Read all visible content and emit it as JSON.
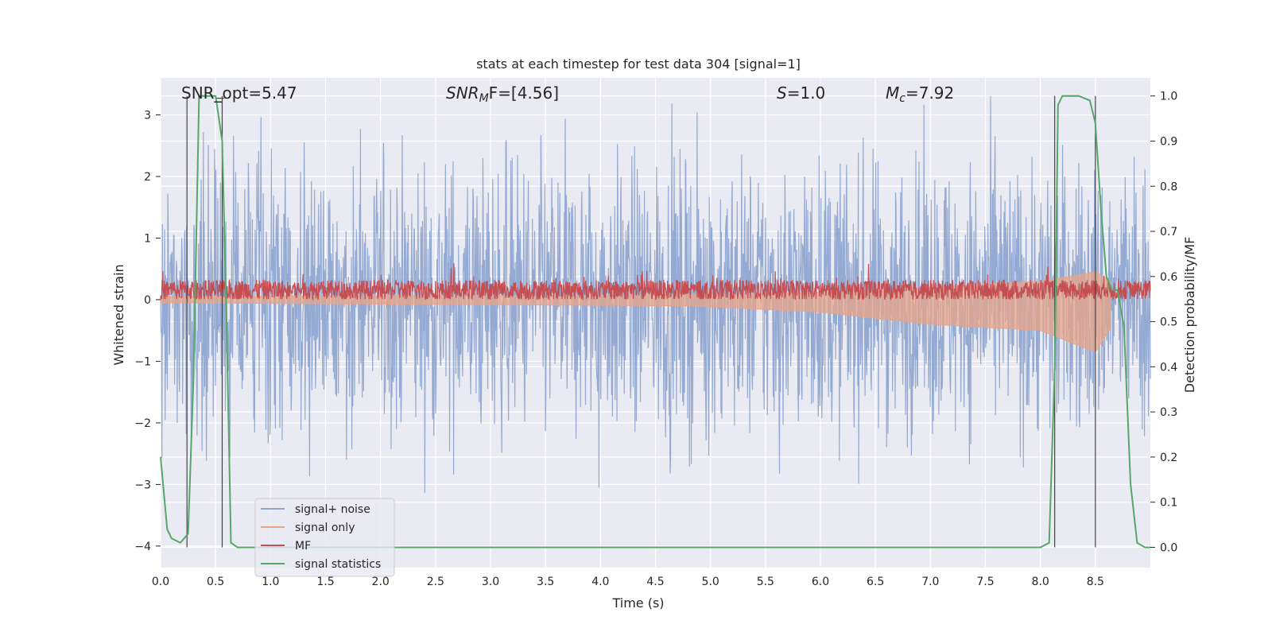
{
  "chart_data": {
    "type": "line",
    "title": "stats at each timestep for test data 304 [signal=1]",
    "xlabel": "Time (s)",
    "ylabel_left": "Whitened strain",
    "ylabel_right": "Detection probability/MF",
    "xlim": [
      0.0,
      9.0
    ],
    "ylim_left": [
      -4.35,
      3.6
    ],
    "ylim_right": [
      -0.045,
      1.04
    ],
    "x_ticks": [
      "0.0",
      "0.5",
      "1.0",
      "1.5",
      "2.0",
      "2.5",
      "3.0",
      "3.5",
      "4.0",
      "4.5",
      "5.0",
      "5.5",
      "6.0",
      "6.5",
      "7.0",
      "7.5",
      "8.0",
      "8.5"
    ],
    "y_left_ticks": [
      "3",
      "2",
      "1",
      "0",
      "−1",
      "−2",
      "−3",
      "−4"
    ],
    "y_right_ticks": [
      "1.0",
      "0.9",
      "0.8",
      "0.7",
      "0.6",
      "0.5",
      "0.4",
      "0.3",
      "0.2",
      "0.1",
      "0.0"
    ],
    "grid": true,
    "legend_position": "lower-left",
    "annotations": {
      "snr_opt": "SNR_opt=5.47",
      "snr_mf_symbol": "SNR",
      "snr_mf_sub": "M",
      "snr_mf_rest": "F=[4.56]",
      "s_symbol": "S",
      "s_rest": "=1.0",
      "mc_symbol": "M",
      "mc_sub": "c",
      "mc_rest": "=7.92"
    },
    "series": [
      {
        "name": "signal+ noise",
        "color": "#8fa6d1",
        "description_axis": "left",
        "approx_range": [
          -3.7,
          3.5
        ]
      },
      {
        "name": "signal only",
        "color": "#e8a488",
        "axis": "left",
        "envelope": [
          [
            0.0,
            0.05,
            -0.05
          ],
          [
            4.8,
            0.08,
            -0.1
          ],
          [
            6.0,
            0.12,
            -0.2
          ],
          [
            7.0,
            0.2,
            -0.4
          ],
          [
            8.0,
            0.3,
            -0.5
          ],
          [
            8.5,
            0.45,
            -0.85
          ],
          [
            8.64,
            0.3,
            -0.45
          ]
        ]
      },
      {
        "name": "MF",
        "color": "#c44e52",
        "axis": "right",
        "baseline": 0.57,
        "approx_range": [
          0.55,
          0.66
        ]
      },
      {
        "name": "signal statistics",
        "color": "#55a868",
        "axis": "right",
        "x": [
          0.0,
          0.06,
          0.1,
          0.18,
          0.25,
          0.3,
          0.35,
          0.45,
          0.5,
          0.56,
          0.6,
          0.64,
          0.7,
          1.0,
          2.0,
          3.0,
          4.0,
          5.0,
          6.0,
          7.0,
          8.0,
          8.08,
          8.13,
          8.16,
          8.2,
          8.25,
          8.35,
          8.45,
          8.5,
          8.55,
          8.6,
          8.65,
          8.7,
          8.76,
          8.82,
          8.88,
          8.95,
          9.0
        ],
        "y": [
          0.2,
          0.04,
          0.02,
          0.01,
          0.03,
          0.38,
          1.0,
          1.0,
          1.0,
          0.9,
          0.5,
          0.01,
          0.0,
          0.0,
          0.0,
          0.0,
          0.0,
          0.0,
          0.0,
          0.0,
          0.0,
          0.01,
          0.4,
          0.98,
          1.0,
          1.0,
          1.0,
          0.99,
          0.94,
          0.75,
          0.6,
          0.57,
          0.57,
          0.49,
          0.14,
          0.01,
          0.0,
          0.0
        ]
      }
    ],
    "vertical_lines": [
      0.24,
      0.56,
      8.13,
      8.5
    ]
  }
}
